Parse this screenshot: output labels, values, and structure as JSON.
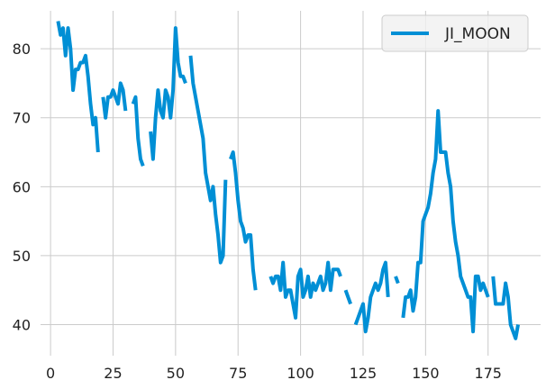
{
  "chart_data": {
    "type": "line",
    "title": "",
    "xlabel": "",
    "ylabel": "",
    "xlim": [
      -4,
      196
    ],
    "ylim": [
      35.5,
      85.5
    ],
    "xticks": [
      0,
      25,
      50,
      75,
      100,
      125,
      150,
      175
    ],
    "yticks": [
      40,
      50,
      60,
      70,
      80
    ],
    "grid": true,
    "legend_position": "top-right",
    "series": [
      {
        "name": "JI_MOON",
        "color": "#008fd5",
        "points": [
          [
            3,
            84
          ],
          [
            4,
            82
          ],
          [
            5,
            83
          ],
          [
            6,
            79
          ],
          [
            7,
            83
          ],
          [
            8,
            80
          ],
          [
            9,
            74
          ],
          [
            10,
            77
          ],
          [
            11,
            77
          ],
          [
            12,
            78
          ],
          [
            13,
            78
          ],
          [
            14,
            79
          ],
          [
            15,
            76
          ],
          [
            16,
            72
          ],
          [
            17,
            69
          ],
          [
            18,
            70
          ],
          [
            19,
            65
          ],
          null,
          [
            21,
            73
          ],
          [
            22,
            70
          ],
          [
            23,
            73
          ],
          [
            24,
            73
          ],
          [
            25,
            74
          ],
          [
            26,
            73
          ],
          [
            27,
            72
          ],
          [
            28,
            75
          ],
          [
            29,
            74
          ],
          [
            30,
            71
          ],
          null,
          [
            33,
            72
          ],
          [
            34,
            73
          ],
          [
            35,
            67
          ],
          [
            36,
            64
          ],
          [
            37,
            63
          ],
          null,
          [
            40,
            68
          ],
          [
            41,
            64
          ],
          [
            42,
            70
          ],
          [
            43,
            74
          ],
          [
            44,
            71
          ],
          [
            45,
            70
          ],
          [
            46,
            74
          ],
          [
            47,
            73
          ],
          [
            48,
            70
          ],
          [
            49,
            74
          ],
          [
            50,
            83
          ],
          [
            51,
            78
          ],
          [
            52,
            76
          ],
          [
            53,
            76
          ],
          [
            54,
            75
          ],
          null,
          [
            56,
            79
          ],
          [
            57,
            75
          ],
          [
            58,
            73
          ],
          [
            59,
            71
          ],
          [
            60,
            69
          ],
          [
            61,
            67
          ],
          [
            62,
            62
          ],
          [
            63,
            60
          ],
          [
            64,
            58
          ],
          [
            65,
            60
          ],
          [
            66,
            56
          ],
          [
            67,
            53
          ],
          [
            68,
            49
          ],
          [
            69,
            50
          ],
          [
            70,
            61
          ],
          null,
          [
            72,
            64
          ],
          [
            73,
            65
          ],
          [
            74,
            62
          ],
          [
            75,
            58
          ],
          [
            76,
            55
          ],
          [
            77,
            54
          ],
          [
            78,
            52
          ],
          [
            79,
            53
          ],
          [
            80,
            53
          ],
          [
            81,
            48
          ],
          [
            82,
            45
          ],
          null,
          [
            86,
            48
          ],
          null,
          [
            88,
            47
          ],
          [
            89,
            46
          ],
          [
            90,
            47
          ],
          [
            91,
            47
          ],
          [
            92,
            45
          ],
          [
            93,
            49
          ],
          [
            94,
            44
          ],
          [
            95,
            45
          ],
          [
            96,
            45
          ],
          [
            97,
            43
          ],
          [
            98,
            41
          ],
          [
            99,
            47
          ],
          [
            100,
            48
          ],
          [
            101,
            44
          ],
          [
            102,
            45
          ],
          [
            103,
            47
          ],
          [
            104,
            44
          ],
          [
            105,
            46
          ],
          [
            106,
            45
          ],
          [
            107,
            46
          ],
          [
            108,
            47
          ],
          [
            109,
            45
          ],
          [
            110,
            46
          ],
          [
            111,
            49
          ],
          [
            112,
            45
          ],
          [
            113,
            48
          ],
          [
            114,
            48
          ],
          [
            115,
            48
          ],
          [
            116,
            47
          ],
          null,
          [
            118,
            45
          ],
          [
            119,
            44
          ],
          [
            120,
            43
          ],
          null,
          [
            122,
            40
          ],
          [
            123,
            41
          ],
          [
            124,
            42
          ],
          [
            125,
            43
          ],
          [
            126,
            39
          ],
          [
            127,
            41
          ],
          [
            128,
            44
          ],
          [
            129,
            45
          ],
          [
            130,
            46
          ],
          [
            131,
            45
          ],
          [
            132,
            46
          ],
          [
            133,
            48
          ],
          [
            134,
            49
          ],
          [
            135,
            44
          ],
          null,
          [
            138,
            47
          ],
          [
            139,
            46
          ],
          null,
          [
            141,
            41
          ],
          [
            142,
            44
          ],
          [
            143,
            44
          ],
          [
            144,
            45
          ],
          [
            145,
            42
          ],
          [
            146,
            44
          ],
          [
            147,
            49
          ],
          [
            148,
            49
          ],
          [
            149,
            55
          ],
          [
            150,
            56
          ],
          [
            151,
            57
          ],
          [
            152,
            59
          ],
          [
            153,
            62
          ],
          [
            154,
            64
          ],
          [
            155,
            71
          ],
          [
            156,
            65
          ],
          [
            157,
            65
          ],
          [
            158,
            65
          ],
          [
            159,
            62
          ],
          [
            160,
            60
          ],
          [
            161,
            55
          ],
          [
            162,
            52
          ],
          [
            163,
            50
          ],
          [
            164,
            47
          ],
          [
            165,
            46
          ],
          [
            166,
            45
          ],
          [
            167,
            44
          ],
          [
            168,
            44
          ],
          [
            169,
            39
          ],
          [
            170,
            47
          ],
          [
            171,
            47
          ],
          [
            172,
            45
          ],
          [
            173,
            46
          ],
          [
            174,
            45
          ],
          [
            175,
            44
          ],
          null,
          [
            177,
            47
          ],
          [
            178,
            43
          ],
          [
            179,
            43
          ],
          [
            180,
            43
          ],
          [
            181,
            43
          ],
          [
            182,
            46
          ],
          [
            183,
            44
          ],
          [
            184,
            40
          ],
          [
            185,
            39
          ],
          [
            186,
            38
          ],
          [
            187,
            40
          ]
        ]
      }
    ]
  }
}
